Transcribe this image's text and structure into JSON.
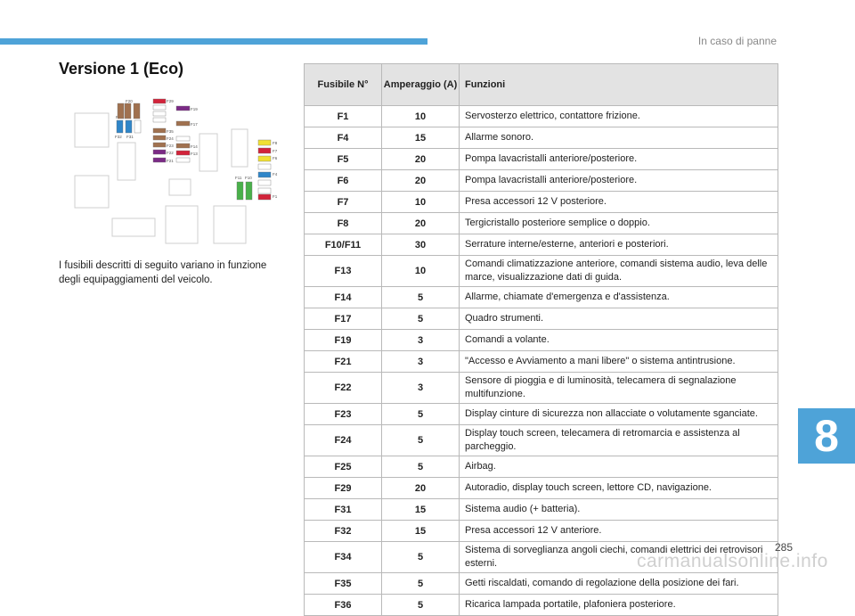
{
  "header": {
    "section": "In caso di panne"
  },
  "title": "Versione 1 (Eco)",
  "description": "I fusibili descritti di seguito variano in funzione degli equipaggiamenti del veicolo.",
  "diagram": {
    "labels": [
      "F20",
      "F16",
      "F4",
      "F32",
      "F31",
      "F29",
      "F19",
      "F17",
      "F35",
      "F24",
      "F23",
      "F22",
      "F21",
      "F14",
      "F13",
      "F8",
      "F7",
      "F6",
      "F4",
      "F1",
      "F11",
      "F10"
    ],
    "colors": {
      "brown": "#a0714f",
      "blue": "#2f86c9",
      "purple": "#7b2a86",
      "red": "#d2233a",
      "yellow": "#f0e033",
      "green": "#49b04a"
    }
  },
  "table": {
    "headers": [
      "Fusibile N°",
      "Amperaggio (A)",
      "Funzioni"
    ],
    "rows": [
      [
        "F1",
        "10",
        "Servosterzo elettrico, contattore frizione."
      ],
      [
        "F4",
        "15",
        "Allarme sonoro."
      ],
      [
        "F5",
        "20",
        "Pompa lavacristalli anteriore/posteriore."
      ],
      [
        "F6",
        "20",
        "Pompa lavacristalli anteriore/posteriore."
      ],
      [
        "F7",
        "10",
        "Presa accessori 12 V posteriore."
      ],
      [
        "F8",
        "20",
        "Tergicristallo posteriore semplice o doppio."
      ],
      [
        "F10/F11",
        "30",
        "Serrature interne/esterne, anteriori e posteriori."
      ],
      [
        "F13",
        "10",
        "Comandi climatizzazione anteriore, comandi sistema audio, leva delle marce, visualizzazione dati di guida."
      ],
      [
        "F14",
        "5",
        "Allarme, chiamate d'emergenza e d'assistenza."
      ],
      [
        "F17",
        "5",
        "Quadro strumenti."
      ],
      [
        "F19",
        "3",
        "Comandi a volante."
      ],
      [
        "F21",
        "3",
        "\"Accesso e Avviamento a mani libere\" o sistema antintrusione."
      ],
      [
        "F22",
        "3",
        "Sensore di pioggia e di luminosità, telecamera di segnalazione multifunzione."
      ],
      [
        "F23",
        "5",
        "Display cinture di sicurezza non allacciate o volutamente sganciate."
      ],
      [
        "F24",
        "5",
        "Display touch screen, telecamera di retromarcia e assistenza al parcheggio."
      ],
      [
        "F25",
        "5",
        "Airbag."
      ],
      [
        "F29",
        "20",
        "Autoradio, display touch screen, lettore CD, navigazione."
      ],
      [
        "F31",
        "15",
        "Sistema audio (+ batteria)."
      ],
      [
        "F32",
        "15",
        "Presa accessori 12 V anteriore."
      ],
      [
        "F34",
        "5",
        "Sistema di sorveglianza angoli ciechi, comandi elettrici dei retrovisori esterni."
      ],
      [
        "F35",
        "5",
        "Getti riscaldati, comando di regolazione della posizione dei fari."
      ],
      [
        "F36",
        "5",
        "Ricarica lampada portatile, plafoniera posteriore."
      ]
    ]
  },
  "chapter": "8",
  "page_number": "285",
  "watermark": "carmanualsonline.info"
}
